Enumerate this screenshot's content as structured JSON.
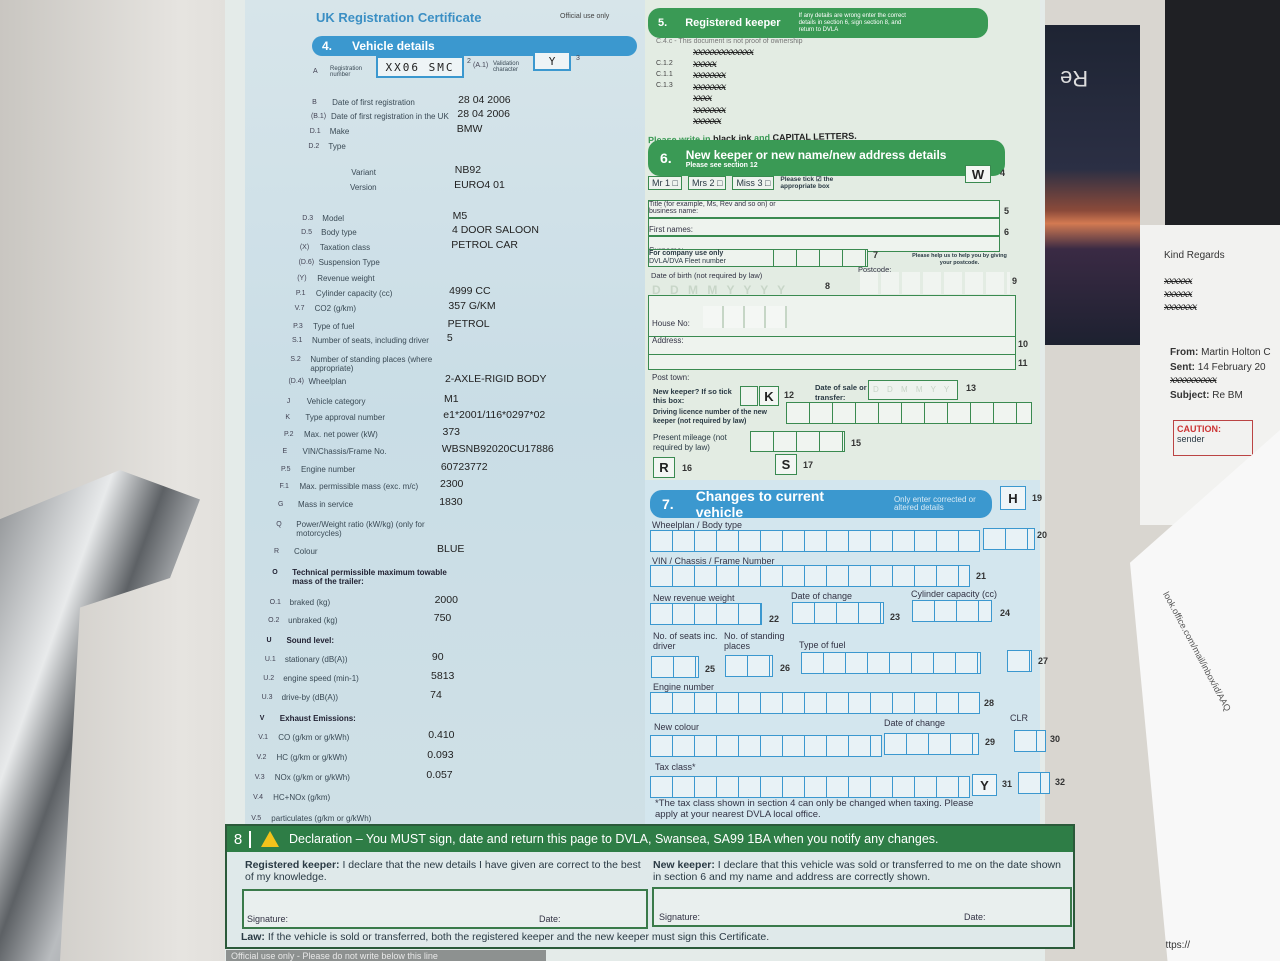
{
  "doc": {
    "title": "UK Registration Certificate",
    "official_use": "Official use only",
    "section4": {
      "heading_num": "4.",
      "heading": "Vehicle details",
      "reg_code": "A",
      "reg_label": "Registration number",
      "reg_value": "XX06 SMC",
      "reg_box_num": "2",
      "val_code": "(A.1)",
      "val_label": "Validation character",
      "val_value": "Y",
      "val_box_num": "3",
      "rows": [
        {
          "code": "B",
          "label": "Date of first registration",
          "value": "28 04 2006"
        },
        {
          "code": "(B.1)",
          "label": "Date of first registration in the UK",
          "value": "28 04 2006"
        },
        {
          "code": "D.1",
          "label": "Make",
          "value": "BMW"
        },
        {
          "code": "D.2",
          "label": "Type",
          "value": ""
        },
        {
          "code": "",
          "label": "Variant",
          "value": "NB92"
        },
        {
          "code": "",
          "label": "Version",
          "value": "EURO4 01"
        },
        {
          "code": "D.3",
          "label": "Model",
          "value": "M5"
        },
        {
          "code": "D.5",
          "label": "Body type",
          "value": "4 DOOR SALOON"
        },
        {
          "code": "(X)",
          "label": "Taxation class",
          "value": "PETROL CAR"
        },
        {
          "code": "(D.6)",
          "label": "Suspension Type",
          "value": ""
        },
        {
          "code": "(Y)",
          "label": "Revenue weight",
          "value": ""
        },
        {
          "code": "P.1",
          "label": "Cylinder capacity (cc)",
          "value": "4999 CC"
        },
        {
          "code": "V.7",
          "label": "CO2 (g/km)",
          "value": "357 G/KM"
        },
        {
          "code": "P.3",
          "label": "Type of fuel",
          "value": "PETROL"
        },
        {
          "code": "S.1",
          "label": "Number of seats, including driver",
          "value": "5"
        },
        {
          "code": "S.2",
          "label": "Number of standing places (where appropriate)",
          "value": ""
        },
        {
          "code": "(D.4)",
          "label": "Wheelplan",
          "value": "2-AXLE-RIGID BODY"
        },
        {
          "code": "J",
          "label": "Vehicle category",
          "value": "M1"
        },
        {
          "code": "K",
          "label": "Type approval number",
          "value": "e1*2001/116*0297*02"
        },
        {
          "code": "P.2",
          "label": "Max. net power (kW)",
          "value": "373"
        },
        {
          "code": "E",
          "label": "VIN/Chassis/Frame No.",
          "value": "WBSNB92020CU17886"
        },
        {
          "code": "P.5",
          "label": "Engine number",
          "value": "60723772"
        },
        {
          "code": "F.1",
          "label": "Max. permissible mass (exc. m/c)",
          "value": "2300"
        },
        {
          "code": "G",
          "label": "Mass in service",
          "value": "1830"
        },
        {
          "code": "Q",
          "label": "Power/Weight ratio (kW/kg) (only for motorcycles)",
          "value": ""
        },
        {
          "code": "R",
          "label": "Colour",
          "value": "BLUE"
        },
        {
          "code": "O",
          "label": "Technical permissible maximum towable mass of the trailer:",
          "value": "",
          "bold": true
        },
        {
          "code": "O.1",
          "label": "braked (kg)",
          "value": "2000"
        },
        {
          "code": "O.2",
          "label": "unbraked (kg)",
          "value": "750"
        },
        {
          "code": "U",
          "label": "Sound level:",
          "value": "",
          "bold": true
        },
        {
          "code": "U.1",
          "label": "stationary (dB(A))",
          "value": "90"
        },
        {
          "code": "U.2",
          "label": "engine speed (min-1)",
          "value": "5813"
        },
        {
          "code": "U.3",
          "label": "drive-by (dB(A))",
          "value": "74"
        },
        {
          "code": "V",
          "label": "Exhaust Emissions:",
          "value": "",
          "bold": true
        },
        {
          "code": "V.1",
          "label": "CO (g/km or g/kWh)",
          "value": "0.410"
        },
        {
          "code": "V.2",
          "label": "HC (g/km or g/kWh)",
          "value": "0.093"
        },
        {
          "code": "V.3",
          "label": "NOx (g/km or g/kWh)",
          "value": "0.057"
        },
        {
          "code": "V.4",
          "label": "HC+NOx (g/km)",
          "value": ""
        },
        {
          "code": "V.5",
          "label": "particulates (g/km or g/kWh)",
          "value": ""
        }
      ]
    },
    "section5": {
      "heading_num": "5.",
      "heading": "Registered keeper",
      "note": "If any details are wrong enter the correct details in section 6, sign section 8, and return to DVLA",
      "proof": "C.4.c - This document is not proof of ownership",
      "codes": [
        "C.1.2",
        "C.1.1",
        "C.1.3"
      ],
      "redacted": [
        "xxxxxxxxxxxxx",
        "xxxxx",
        "xxxxxxx",
        "xxxxxxx",
        "xxxx",
        "xxxxxxx",
        "xxxxxx"
      ],
      "instruction_1": "Please write in ",
      "instruction_2": "black ink",
      "instruction_3": " and ",
      "instruction_4": "CAPITAL LETTERS."
    },
    "section6": {
      "heading_num": "6.",
      "heading": "New keeper or new name/new address details",
      "sub": "Please see section 12",
      "titles": [
        {
          "label": "Mr",
          "num": "1"
        },
        {
          "label": "Mrs",
          "num": "2"
        },
        {
          "label": "Miss",
          "num": "3"
        }
      ],
      "tick_note": "Please tick ☑ the appropriate box",
      "w_letter": "W",
      "w_num": "4",
      "title_label": "Title (for example, Ms, Rev and so on) or business name:",
      "num5": "5",
      "first_names": "First names:",
      "num6": "6",
      "surname": "Surname:",
      "company": "For company use only",
      "fleet": "DVLA/DVA Fleet number",
      "num7": "7",
      "dob": "Date of birth (not required by law)",
      "dob_ph": "D D M M Y Y Y Y",
      "num8": "8",
      "postcode": "Postcode:",
      "postcode_note": "Please help us to help you by giving your postcode.",
      "num9": "9",
      "house_no": "House No:",
      "address": "Address:",
      "num10": "10",
      "num11": "11",
      "post_town": "Post town:",
      "new_keeper": "New keeper? If so tick this box:",
      "k_letter": "K",
      "num12": "12",
      "date_sale": "Date of sale or transfer:",
      "date_ph": "D D M M Y Y",
      "num13": "13",
      "licence": "Driving licence number of the new keeper (not required by law)",
      "mileage": "Present mileage (not required by law)",
      "num15": "15",
      "r_letter": "R",
      "num16": "16",
      "s_letter": "S",
      "num17": "17"
    },
    "section7": {
      "heading_num": "7.",
      "heading": "Changes to current vehicle",
      "note": "Only enter corrected or altered details",
      "h_letter": "H",
      "num19": "19",
      "wheelplan": "Wheelplan / Body type",
      "num20": "20",
      "vin": "VIN / Chassis / Frame Number",
      "num21": "21",
      "revenue": "New revenue weight",
      "num22": "22",
      "date_change": "Date of change",
      "num23": "23",
      "cylinder": "Cylinder capacity (cc)",
      "num24": "24",
      "seats": "No. of seats inc. driver",
      "num25": "25",
      "standing": "No. of standing places",
      "num26": "26",
      "fuel": "Type of fuel",
      "num27": "27",
      "engine": "Engine number",
      "num28": "28",
      "colour": "New colour",
      "date_change2": "Date of change",
      "num29": "29",
      "clr": "CLR",
      "num30": "30",
      "tax": "Tax class*",
      "y_letter": "Y",
      "num31": "31",
      "num32": "32",
      "footnote": "*The tax class shown in section 4 can only be changed when taxing. Please apply at your nearest DVLA local office."
    },
    "section8": {
      "num": "8",
      "heading": "Declaration",
      "heading_rest": " – You MUST sign, date and return this page to DVLA, Swansea, SA99 1BA when you notify any changes.",
      "rk_bold": "Registered keeper:",
      "rk_text": " I declare that the new details I have given are correct to the best of my knowledge.",
      "nk_bold": "New keeper:",
      "nk_text": " I declare that this vehicle was sold or transferred to me on the date shown in section 6 and my name and address are correctly shown.",
      "signature": "Signature:",
      "date": "Date:",
      "law_bold": "Law:",
      "law_text": " If the vehicle is sold or transferred, both the registered keeper and the new keeper must sign this Certificate.",
      "bottom_strip": "Official use only - Please do not write below this line"
    }
  },
  "background": {
    "email": {
      "closing": "Kind Regards",
      "from_label": "From:",
      "from": "Martin Holton C",
      "sent_label": "Sent:",
      "sent": "14 February 20",
      "subject_label": "Subject:",
      "subject": "Re BM",
      "caution": "CAUTION:",
      "sender": "sender",
      "url": "https://"
    },
    "url_snippet": "look.office.com/mail/inbox/id/AAQ",
    "brochure": "Re"
  },
  "colors": {
    "blue": "#3b98cf",
    "green": "#3a9a55",
    "dark_green": "#2e7d46",
    "warning": "#f3c21b"
  }
}
